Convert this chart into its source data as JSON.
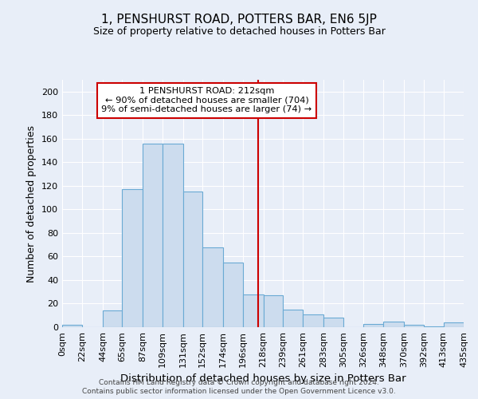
{
  "title": "1, PENSHURST ROAD, POTTERS BAR, EN6 5JP",
  "subtitle": "Size of property relative to detached houses in Potters Bar",
  "xlabel": "Distribution of detached houses by size in Potters Bar",
  "ylabel": "Number of detached properties",
  "bar_values": [
    2,
    0,
    14,
    117,
    156,
    156,
    115,
    68,
    55,
    28,
    27,
    15,
    11,
    8,
    0,
    3,
    5,
    2,
    1,
    4
  ],
  "bin_edges": [
    0,
    22,
    44,
    65,
    87,
    109,
    131,
    152,
    174,
    196,
    218,
    239,
    261,
    283,
    305,
    326,
    348,
    370,
    392,
    413,
    435
  ],
  "x_tick_labels": [
    "0sqm",
    "22sqm",
    "44sqm",
    "65sqm",
    "87sqm",
    "109sqm",
    "131sqm",
    "152sqm",
    "174sqm",
    "196sqm",
    "218sqm",
    "239sqm",
    "261sqm",
    "283sqm",
    "305sqm",
    "326sqm",
    "348sqm",
    "370sqm",
    "392sqm",
    "413sqm",
    "435sqm"
  ],
  "bar_color": "#ccdcee",
  "bar_edge_color": "#6aaad4",
  "bg_color": "#e8eef8",
  "grid_color": "#ffffff",
  "vline_x": 212,
  "vline_color": "#cc0000",
  "annotation_text": "1 PENSHURST ROAD: 212sqm\n← 90% of detached houses are smaller (704)\n9% of semi-detached houses are larger (74) →",
  "annotation_box_color": "#ffffff",
  "annotation_box_edge": "#cc0000",
  "footer_line1": "Contains HM Land Registry data © Crown copyright and database right 2024.",
  "footer_line2": "Contains public sector information licensed under the Open Government Licence v3.0.",
  "ylim": [
    0,
    210
  ],
  "yticks": [
    0,
    20,
    40,
    60,
    80,
    100,
    120,
    140,
    160,
    180,
    200
  ]
}
